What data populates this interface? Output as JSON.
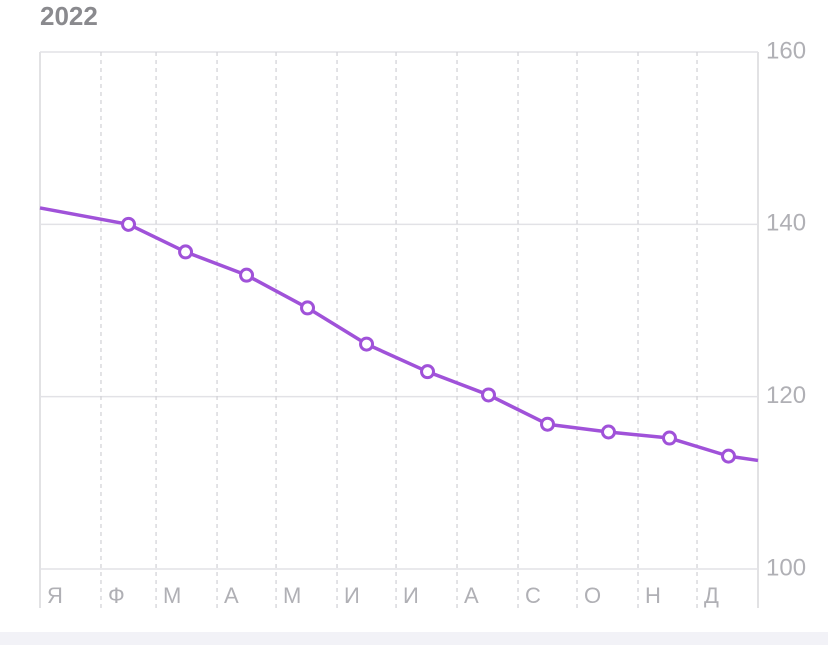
{
  "chart_data": {
    "type": "line",
    "title": "2022",
    "x": [
      0,
      45,
      74,
      105,
      136,
      166,
      197,
      228,
      258,
      289,
      320,
      350,
      365
    ],
    "xlim": [
      0,
      365
    ],
    "xticks": [
      {
        "value": 0,
        "label": "Я"
      },
      {
        "value": 31,
        "label": "Ф"
      },
      {
        "value": 59,
        "label": "М"
      },
      {
        "value": 90,
        "label": "А"
      },
      {
        "value": 120,
        "label": "М"
      },
      {
        "value": 151,
        "label": "И"
      },
      {
        "value": 181,
        "label": "И"
      },
      {
        "value": 212,
        "label": "А"
      },
      {
        "value": 243,
        "label": "С"
      },
      {
        "value": 273,
        "label": "О"
      },
      {
        "value": 304,
        "label": "Н"
      },
      {
        "value": 334,
        "label": "Д"
      }
    ],
    "series": [
      {
        "color": "#a052d9",
        "values": [
          141.9,
          140.0,
          136.8,
          134.1,
          130.3,
          126.1,
          122.9,
          120.2,
          116.8,
          115.9,
          115.2,
          113.1,
          112.6
        ]
      }
    ],
    "ylim": [
      100,
      160
    ],
    "yticks": [
      100,
      120,
      140,
      160
    ],
    "grid": true
  }
}
